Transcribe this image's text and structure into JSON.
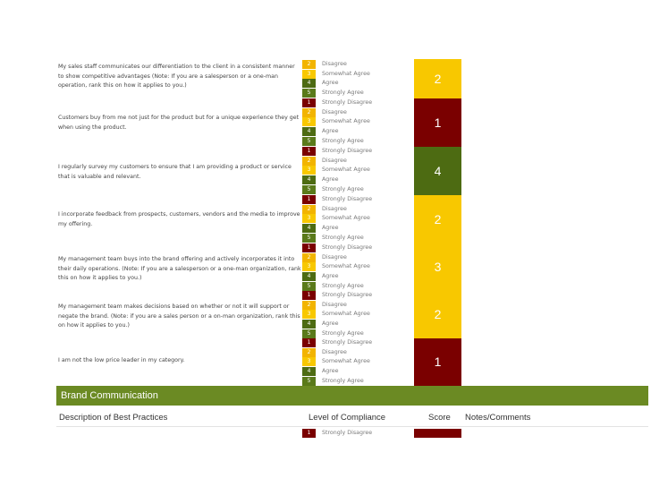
{
  "rating_labels": {
    "1": "Strongly Disagree",
    "2": "Disagree",
    "3": "Somewhat Agree",
    "4": "Agree",
    "5": "Strongly Agree"
  },
  "colors": {
    "r1": "#7a0000",
    "r2": "#f2b400",
    "r3": "#f8c800",
    "r4": "#4d6b12",
    "r5": "#5a7a1a",
    "section_bar": "#6b8a23"
  },
  "questions": [
    {
      "text": "My sales staff communicates our differentiation to the client in a consistent manner to show competitive advantages (Note: If you are a salesperson or a one-man operation, rank this on how it applies to you.)",
      "score": "2"
    },
    {
      "text": "Customers buy from me not just for the product but for a unique experience they get when using the product.",
      "score": "1"
    },
    {
      "text": "I regularly survey my customers to ensure that I am providing a product or service that is valuable and relevant.",
      "score": "4"
    },
    {
      "text": "I incorporate feedback from prospects, customers, vendors and the media to improve my offering.",
      "score": "2"
    },
    {
      "text": "My management team buys into the brand offering and actively incorporates it into their daily operations. (Note: If you are a salesperson or a one-man organization, rank this on how it applies to you.)",
      "score": "3"
    },
    {
      "text": "My management team makes decisions based on whether or not it will support or negate the brand. (Note: if you are a sales person or a on-man organization, rank this on how it applies to you.)",
      "score": "2"
    },
    {
      "text": "I am not the low price leader in my category.",
      "score": "1"
    }
  ],
  "section": {
    "title": "Brand Communication"
  },
  "table_header": {
    "description": "Description of Best Practices",
    "compliance": "Level of Compliance",
    "score": "Score",
    "notes": "Notes/Comments"
  },
  "next_row": {
    "num": "1",
    "label": "Strongly Disagree"
  }
}
